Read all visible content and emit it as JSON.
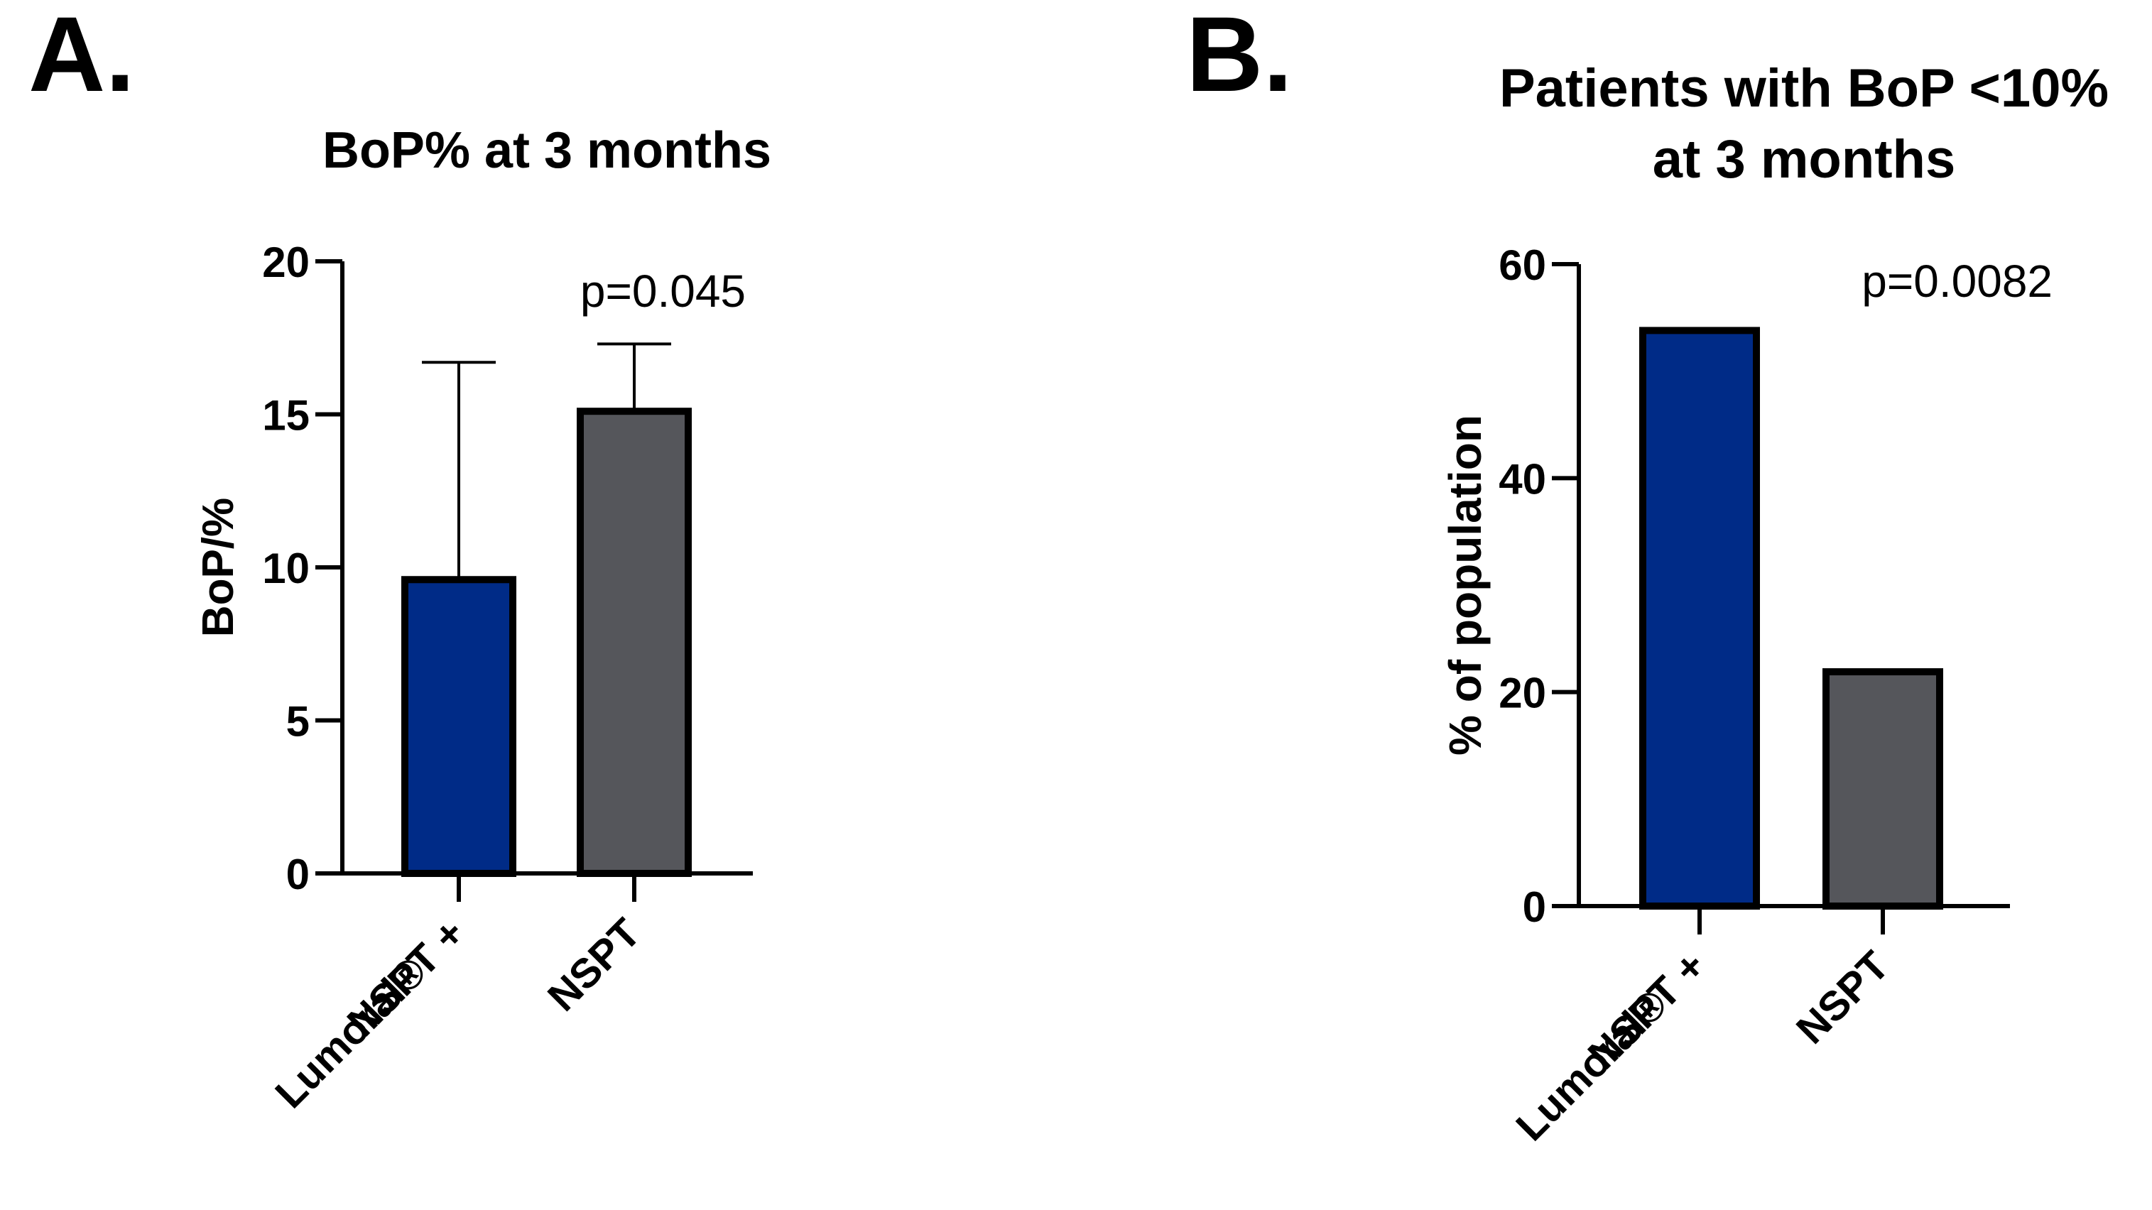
{
  "chart_data": [
    {
      "panel_label": "A.",
      "type": "bar",
      "title": "BoP% at 3 months",
      "title_lines": [
        "BoP% at 3 months"
      ],
      "xlabel": "",
      "ylabel": "BoP/%",
      "ylim": [
        0,
        20
      ],
      "yticks": [
        "0",
        "5",
        "10",
        "15",
        "20"
      ],
      "ytick_values": [
        0,
        5,
        10,
        15,
        20
      ],
      "categories": [
        "NSPT + Lumoral®",
        "NSPT"
      ],
      "category_lines": [
        [
          "NSPT +",
          "Lumoral®"
        ],
        [
          "NSPT"
        ]
      ],
      "values": [
        9.6,
        15.1
      ],
      "error_upper": [
        16.7,
        17.3
      ],
      "colors": [
        "#002b87",
        "#55565b"
      ],
      "annotation": "p=0.045",
      "grid": false,
      "legend": "none"
    },
    {
      "panel_label": "B.",
      "type": "bar",
      "title": "Patients with BoP <10% at 3 months",
      "title_lines": [
        "Patients with BoP <10%",
        "at 3 months"
      ],
      "xlabel": "",
      "ylabel": "% of population",
      "ylim": [
        0,
        60
      ],
      "yticks": [
        "0",
        "20",
        "40",
        "60"
      ],
      "ytick_values": [
        0,
        20,
        40,
        60
      ],
      "categories": [
        "NSPT + Lumoral®",
        "NSPT"
      ],
      "category_lines": [
        [
          "NSPT +",
          "Lumoral®"
        ],
        [
          "NSPT"
        ]
      ],
      "values": [
        53.8,
        21.9
      ],
      "error_upper": null,
      "colors": [
        "#002b87",
        "#55565b"
      ],
      "annotation": "p=0.0082",
      "grid": false,
      "legend": "none"
    }
  ]
}
